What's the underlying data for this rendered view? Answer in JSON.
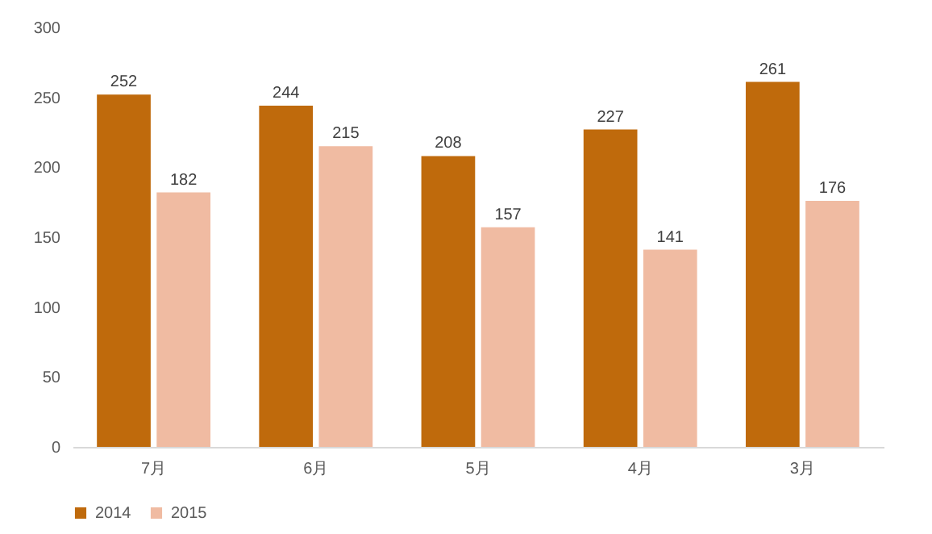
{
  "chart_data": {
    "type": "bar",
    "categories": [
      "7月",
      "6月",
      "5月",
      "4月",
      "3月"
    ],
    "series": [
      {
        "name": "2014",
        "color": "#bf6a0c",
        "values": [
          252,
          244,
          208,
          227,
          261
        ]
      },
      {
        "name": "2015",
        "color": "#f0bba2",
        "values": [
          182,
          215,
          157,
          141,
          176
        ]
      }
    ],
    "ylim": [
      0,
      300
    ],
    "yticks": [
      0,
      50,
      100,
      150,
      200,
      250,
      300
    ],
    "grid": false,
    "legend": "bottom",
    "data_labels": true
  }
}
